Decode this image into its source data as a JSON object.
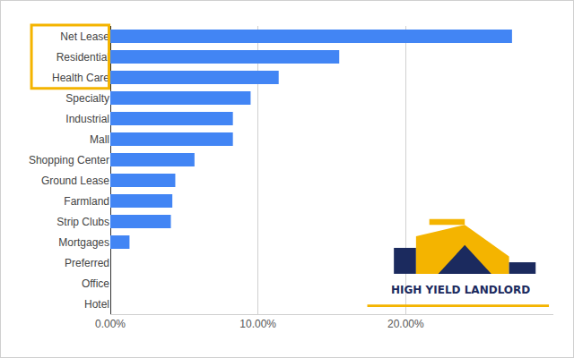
{
  "chart_data": {
    "type": "bar",
    "orientation": "horizontal",
    "categories": [
      "Net Lease",
      "Residential",
      "Health Care",
      "Specialty",
      "Industrial",
      "Mall",
      "Shopping Center",
      "Ground Lease",
      "Farmland",
      "Strip Clubs",
      "Mortgages",
      "Preferred",
      "Office",
      "Hotel"
    ],
    "values": [
      27.2,
      15.5,
      11.4,
      9.5,
      8.3,
      8.3,
      5.7,
      4.4,
      4.2,
      4.1,
      1.3,
      0,
      0,
      0
    ],
    "color": "#4285f4",
    "xlim": [
      0,
      30
    ],
    "xticks": [
      {
        "value": 0,
        "label": "0.00%"
      },
      {
        "value": 10,
        "label": "10.00%"
      },
      {
        "value": 20,
        "label": "20.00%"
      }
    ],
    "grid": true,
    "annotations": [
      {
        "text": "HIGH YIELD LANDLORD"
      }
    ]
  }
}
